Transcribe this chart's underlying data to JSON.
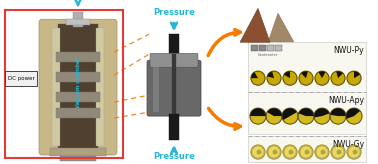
{
  "bg_color": "#ffffff",
  "dc_power_label": "DC power",
  "vacuum_chamber_label": "Vacuum chamber",
  "pressure_top_label": "Pressure",
  "pressure_bottom_label": "Pressure",
  "nwu_labels": [
    "NWU-Py",
    "NWU-Apy",
    "NWU-Gy"
  ],
  "arrow_color_cyan": "#29b6d4",
  "arrow_color_orange": "#f57c00",
  "box_color_red": "#e53935",
  "cone1_color": "#8B5030",
  "cone2_color": "#A08868",
  "panel_bg": "#f5f5ee",
  "panel_border": "#cccccc",
  "gold_color": "#C8A800",
  "gold_light": "#D4B820",
  "black_color": "#1a1a1a",
  "gray_die": "#686868",
  "gray_die_light": "#909090",
  "cyl_outer": "#c0b090",
  "cyl_inner_dark": "#504030",
  "cyl_mid": "#888070"
}
